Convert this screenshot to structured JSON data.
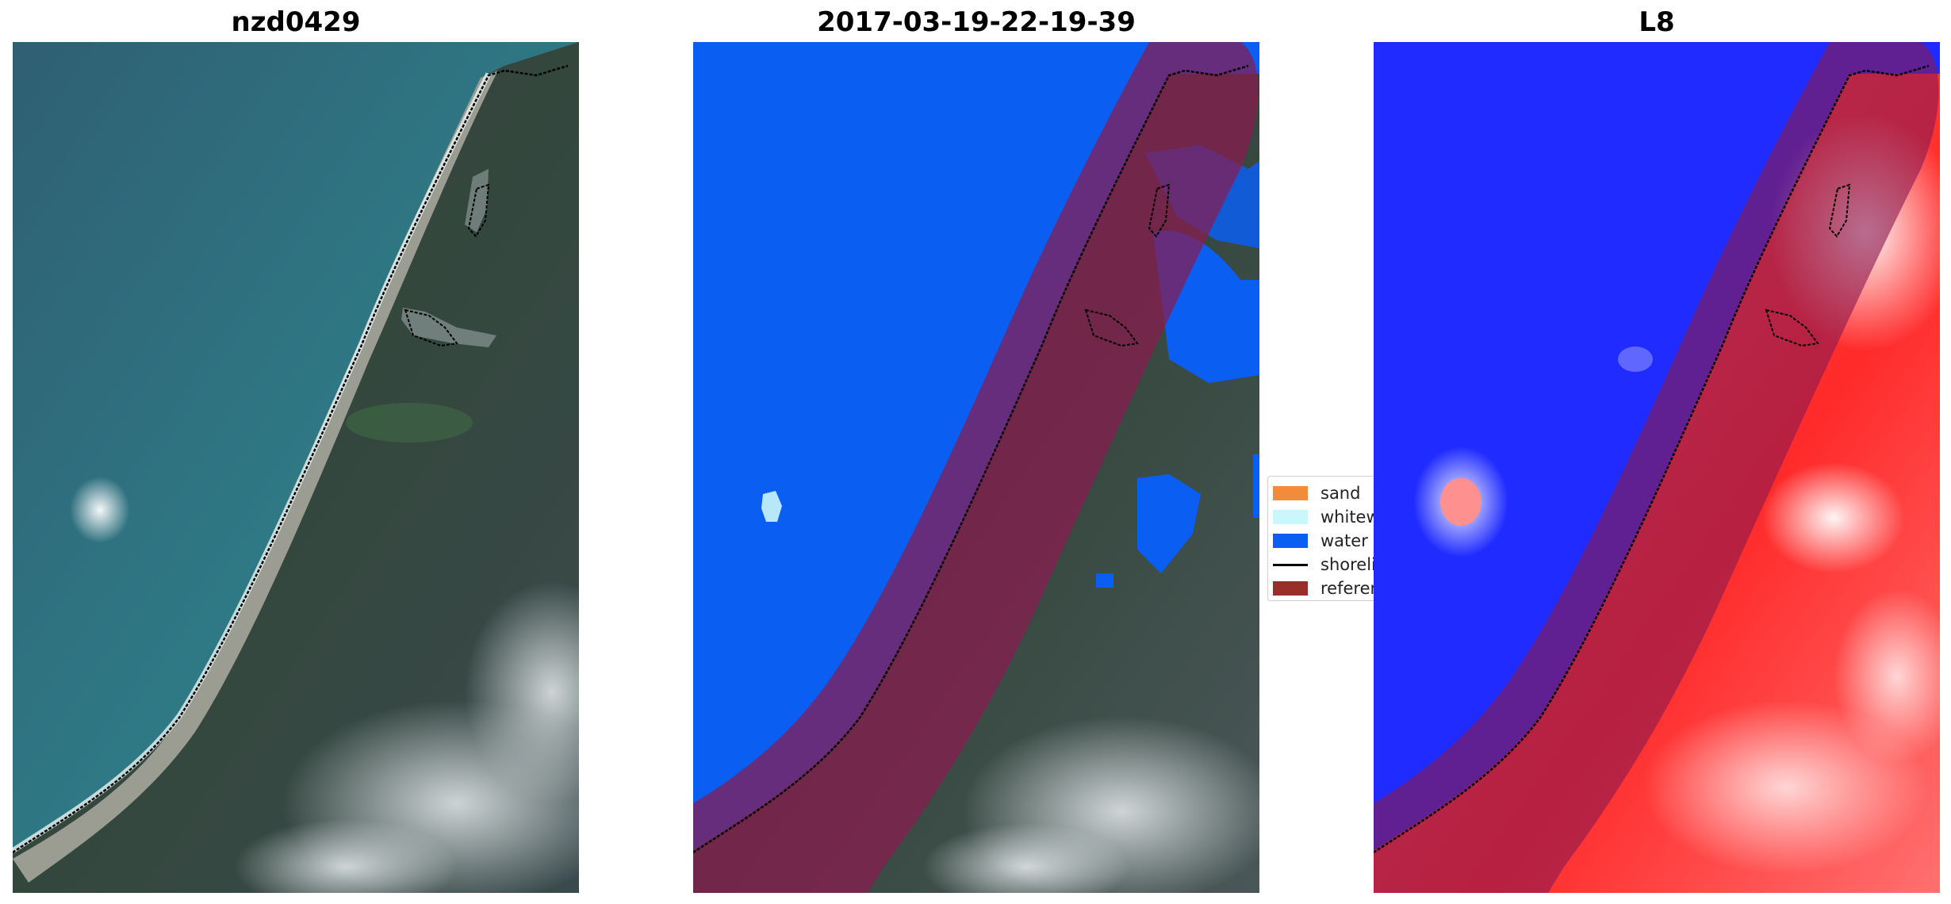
{
  "panels": [
    {
      "title": "nzd0429"
    },
    {
      "title": "2017-03-19-22-19-39"
    },
    {
      "title": "L8"
    }
  ],
  "legend": {
    "items": [
      {
        "label": "sand",
        "color": "#f28c3b",
        "kind": "patch"
      },
      {
        "label": "whitewater",
        "color": "#c9f7fb",
        "kind": "patch"
      },
      {
        "label": "water",
        "color": "#0a5ef2",
        "kind": "patch"
      },
      {
        "label": "shoreline",
        "color": "#000000",
        "kind": "line"
      },
      {
        "label": "reference shoreline buffer",
        "color": "#9a2f2a",
        "kind": "patch"
      }
    ]
  },
  "colors": {
    "ocean": "#2e6f86",
    "land": "#34473f",
    "beach": "#9b9b90",
    "water_class": "#0a5ef2",
    "buffer_overlay": "#8b1a4f",
    "index_negative": "#1f2bff",
    "index_positive": "#ff1a1a"
  }
}
